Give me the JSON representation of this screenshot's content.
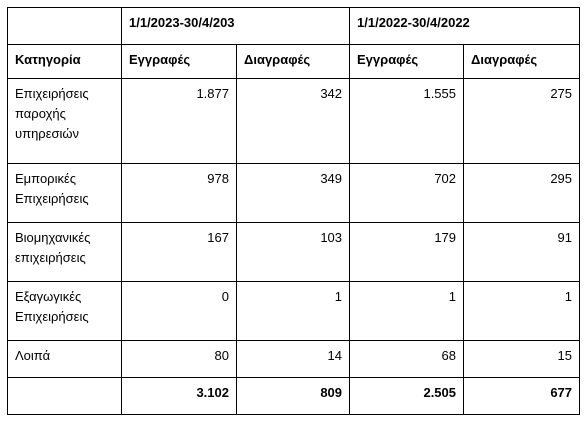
{
  "header": {
    "periods": [
      "1/1/2023-30/4/203",
      "1/1/2022-30/4/2022"
    ]
  },
  "table": {
    "columns": [
      "Κατηγορία",
      "Εγγραφές",
      "Διαγραφές",
      "Εγγραφές",
      "Διαγραφές"
    ],
    "rows": [
      [
        "Επιχειρήσεις παροχής υπηρεσιών",
        "1.877",
        "342",
        "1.555",
        "275"
      ],
      [
        "Εμπορικές Επιχειρήσεις",
        "978",
        "349",
        "702",
        "295"
      ],
      [
        "Βιομηχανικές επιχειρήσεις",
        "167",
        "103",
        "179",
        "91"
      ],
      [
        "Εξαγωγικές Επιχειρήσεις",
        "0",
        "1",
        "1",
        "1"
      ],
      [
        "Λοιπά",
        "80",
        "14",
        "68",
        "15"
      ]
    ],
    "totals": [
      "3.102",
      "809",
      "2.505",
      "677"
    ]
  }
}
